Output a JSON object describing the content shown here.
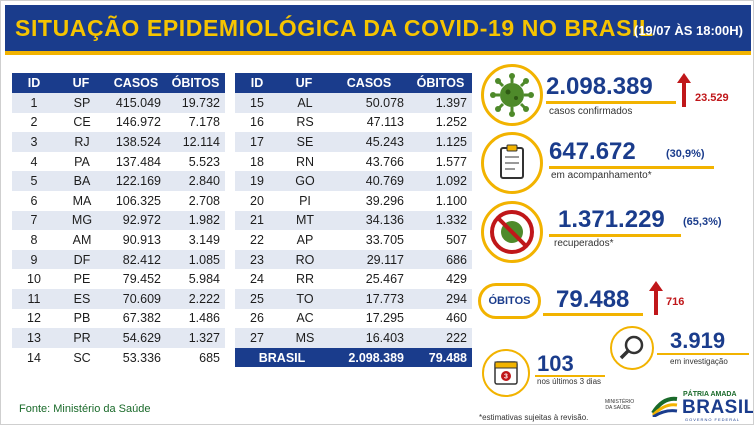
{
  "header": {
    "title": "SITUAÇÃO EPIDEMIOLÓGICA DA COVID-19 NO BRASIL",
    "subtitle": "(19/07 ÀS 18:00H)"
  },
  "table_headers": [
    "ID",
    "UF",
    "CASOS",
    "ÓBITOS"
  ],
  "left_rows": [
    [
      "1",
      "SP",
      "415.049",
      "19.732"
    ],
    [
      "2",
      "CE",
      "146.972",
      "7.178"
    ],
    [
      "3",
      "RJ",
      "138.524",
      "12.114"
    ],
    [
      "4",
      "PA",
      "137.484",
      "5.523"
    ],
    [
      "5",
      "BA",
      "122.169",
      "2.840"
    ],
    [
      "6",
      "MA",
      "106.325",
      "2.708"
    ],
    [
      "7",
      "MG",
      "92.972",
      "1.982"
    ],
    [
      "8",
      "AM",
      "90.913",
      "3.149"
    ],
    [
      "9",
      "DF",
      "82.412",
      "1.085"
    ],
    [
      "10",
      "PE",
      "79.452",
      "5.984"
    ],
    [
      "11",
      "ES",
      "70.609",
      "2.222"
    ],
    [
      "12",
      "PB",
      "67.382",
      "1.486"
    ],
    [
      "13",
      "PR",
      "54.629",
      "1.327"
    ],
    [
      "14",
      "SC",
      "53.336",
      "685"
    ]
  ],
  "right_rows": [
    [
      "15",
      "AL",
      "50.078",
      "1.397"
    ],
    [
      "16",
      "RS",
      "47.113",
      "1.252"
    ],
    [
      "17",
      "SE",
      "45.243",
      "1.125"
    ],
    [
      "18",
      "RN",
      "43.766",
      "1.577"
    ],
    [
      "19",
      "GO",
      "40.769",
      "1.092"
    ],
    [
      "20",
      "PI",
      "39.296",
      "1.100"
    ],
    [
      "21",
      "MT",
      "34.136",
      "1.332"
    ],
    [
      "22",
      "AP",
      "33.705",
      "507"
    ],
    [
      "23",
      "RO",
      "29.117",
      "686"
    ],
    [
      "24",
      "RR",
      "25.467",
      "429"
    ],
    [
      "25",
      "TO",
      "17.773",
      "294"
    ],
    [
      "26",
      "AC",
      "17.295",
      "460"
    ],
    [
      "27",
      "MS",
      "16.403",
      "222"
    ]
  ],
  "total": {
    "label": "BRASIL",
    "casos": "2.098.389",
    "obitos": "79.488"
  },
  "stats": {
    "confirmados": {
      "value": "2.098.389",
      "label": "casos confirmados",
      "delta": "23.529"
    },
    "acompanhamento": {
      "value": "647.672",
      "pct": "(30,9%)",
      "label": "em acompanhamento*"
    },
    "recuperados": {
      "value": "1.371.229",
      "pct": "(65,3%)",
      "label": "recuperados*"
    },
    "obitos": {
      "badge": "ÓBITOS",
      "value": "79.488",
      "delta": "716"
    },
    "investigacao": {
      "value": "3.919",
      "label": "em investigação"
    },
    "ultimos": {
      "value": "103",
      "label": "nos últimos 3 dias",
      "calendar_day": "3"
    }
  },
  "source": "Fonte: Ministério da Saúde",
  "footnote": "*estimativas sujeitas à revisão.",
  "logos": {
    "ministerio": "MINISTÉRIO DA SAÚDE",
    "patria": "PÁTRIA AMADA",
    "brasil": "BRASIL",
    "governo": "GOVERNO FEDERAL"
  },
  "colors": {
    "navy": "#1a3c8c",
    "gold": "#f2b300",
    "red": "#c0171a",
    "green": "#1a6a2a"
  }
}
